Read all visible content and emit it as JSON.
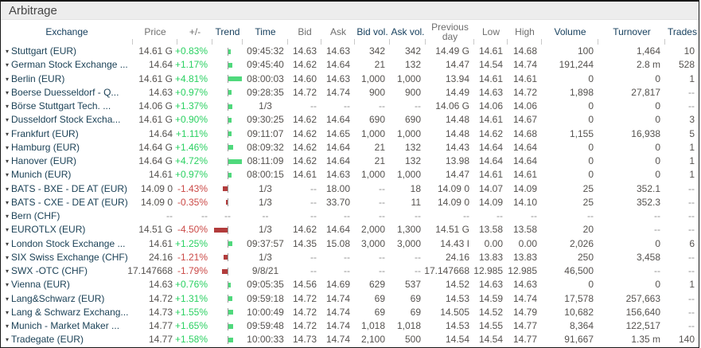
{
  "title": "Arbitrage",
  "colors": {
    "positive_text": "#2bd162",
    "negative_text": "#cb4a47",
    "positive_bar": "#4fd97c",
    "negative_bar": "#b23c3c",
    "header_navy": "#17405e",
    "header_gray": "#6e6e6e",
    "exchange_text": "#1c4257",
    "number_text": "#55524f",
    "titlebar_bg": "#ededed"
  },
  "columns": [
    {
      "label": "Exchange",
      "tone": "navy"
    },
    {
      "label": "Price",
      "tone": "gray"
    },
    {
      "label": "+/-",
      "tone": "gray"
    },
    {
      "label": "Trend",
      "tone": "navy"
    },
    {
      "label": "Time",
      "tone": "navy"
    },
    {
      "label": "Bid",
      "tone": "gray"
    },
    {
      "label": "Ask",
      "tone": "gray"
    },
    {
      "label": "Bid vol.",
      "tone": "navy"
    },
    {
      "label": "Ask vol.",
      "tone": "navy"
    },
    {
      "label": "Previous day",
      "tone": "gray"
    },
    {
      "label": "Low",
      "tone": "gray"
    },
    {
      "label": "High",
      "tone": "gray"
    },
    {
      "label": "Volume",
      "tone": "navy"
    },
    {
      "label": "Turnover",
      "tone": "navy"
    },
    {
      "label": "Trades",
      "tone": "navy"
    }
  ],
  "rows": [
    {
      "exchange": "Stuttgart (EUR)",
      "price": "14.61 G",
      "change": "+0.83%",
      "time": "09:45:32",
      "bid": "14.63",
      "ask": "14.63",
      "bid_vol": "342",
      "ask_vol": "342",
      "prev_day": "14.49 G",
      "low": "14.61",
      "high": "14.68",
      "volume": "100",
      "turnover": "1,464",
      "trades": "10"
    },
    {
      "exchange": "German Stock Exchange ...",
      "price": "14.64",
      "change": "+1.17%",
      "time": "09:45:40",
      "bid": "14.62",
      "ask": "14.64",
      "bid_vol": "21",
      "ask_vol": "132",
      "prev_day": "14.47",
      "low": "14.54",
      "high": "14.74",
      "volume": "191,244",
      "turnover": "2.8 m",
      "trades": "528"
    },
    {
      "exchange": "Berlin (EUR)",
      "price": "14.61 G",
      "change": "+4.81%",
      "time": "08:00:03",
      "bid": "14.60",
      "ask": "14.63",
      "bid_vol": "1,000",
      "ask_vol": "1,000",
      "prev_day": "13.94",
      "low": "14.61",
      "high": "14.61",
      "volume": "0",
      "turnover": "0",
      "trades": "1"
    },
    {
      "exchange": "Boerse Duesseldorf - Q...",
      "price": "14.63",
      "change": "+0.97%",
      "time": "09:28:35",
      "bid": "14.72",
      "ask": "14.74",
      "bid_vol": "900",
      "ask_vol": "900",
      "prev_day": "14.49",
      "low": "14.63",
      "high": "14.72",
      "volume": "1,898",
      "turnover": "27,817",
      "trades": "--"
    },
    {
      "exchange": "Börse Stuttgart Tech. ...",
      "price": "14.06 G",
      "change": "+1.37%",
      "time": "1/3",
      "bid": "--",
      "ask": "--",
      "bid_vol": "--",
      "ask_vol": "--",
      "prev_day": "14.06 G",
      "low": "14.06",
      "high": "14.06",
      "volume": "0",
      "turnover": "0",
      "trades": "--"
    },
    {
      "exchange": "Dusseldorf Stock Excha...",
      "price": "14.61 G",
      "change": "+0.90%",
      "time": "09:30:25",
      "bid": "14.62",
      "ask": "14.64",
      "bid_vol": "690",
      "ask_vol": "690",
      "prev_day": "14.48",
      "low": "14.61",
      "high": "14.67",
      "volume": "0",
      "turnover": "0",
      "trades": "3"
    },
    {
      "exchange": "Frankfurt (EUR)",
      "price": "14.64",
      "change": "+1.11%",
      "time": "09:11:07",
      "bid": "14.62",
      "ask": "14.65",
      "bid_vol": "1,000",
      "ask_vol": "1,000",
      "prev_day": "14.48",
      "low": "14.62",
      "high": "14.68",
      "volume": "1,155",
      "turnover": "16,938",
      "trades": "5"
    },
    {
      "exchange": "Hamburg (EUR)",
      "price": "14.64 G",
      "change": "+1.46%",
      "time": "08:09:32",
      "bid": "14.62",
      "ask": "14.64",
      "bid_vol": "21",
      "ask_vol": "132",
      "prev_day": "14.43",
      "low": "14.64",
      "high": "14.64",
      "volume": "0",
      "turnover": "0",
      "trades": "1"
    },
    {
      "exchange": "Hanover (EUR)",
      "price": "14.64 G",
      "change": "+4.72%",
      "time": "08:11:09",
      "bid": "14.62",
      "ask": "14.64",
      "bid_vol": "21",
      "ask_vol": "132",
      "prev_day": "13.98",
      "low": "14.64",
      "high": "14.64",
      "volume": "0",
      "turnover": "0",
      "trades": "1"
    },
    {
      "exchange": "Munich (EUR)",
      "price": "14.61",
      "change": "+0.97%",
      "time": "08:00:15",
      "bid": "14.61",
      "ask": "14.63",
      "bid_vol": "1,000",
      "ask_vol": "1,000",
      "prev_day": "14.47",
      "low": "14.61",
      "high": "14.61",
      "volume": "0",
      "turnover": "0",
      "trades": "1"
    },
    {
      "exchange": "BATS - BXE - DE AT (EUR)",
      "price": "14.09 0",
      "change": "-1.43%",
      "time": "1/3",
      "bid": "--",
      "ask": "18.00",
      "bid_vol": "--",
      "ask_vol": "18",
      "prev_day": "14.09 0",
      "low": "14.07",
      "high": "14.09",
      "volume": "25",
      "turnover": "352.1",
      "trades": "--"
    },
    {
      "exchange": "BATS - CXE - DE AT (EUR)",
      "price": "14.09 0",
      "change": "-0.35%",
      "time": "1/3",
      "bid": "--",
      "ask": "33.70",
      "bid_vol": "--",
      "ask_vol": "11",
      "prev_day": "14.09 0",
      "low": "14.09",
      "high": "14.10",
      "volume": "25",
      "turnover": "352.3",
      "trades": "--"
    },
    {
      "exchange": "Bern (CHF)",
      "price": "--",
      "change": "--",
      "time": "--",
      "bid": "--",
      "ask": "--",
      "bid_vol": "--",
      "ask_vol": "--",
      "prev_day": "--",
      "low": "--",
      "high": "--",
      "volume": "--",
      "turnover": "--",
      "trades": "--"
    },
    {
      "exchange": "EUROTLX (EUR)",
      "price": "14.51 G",
      "change": "-4.50%",
      "time": "1/3",
      "bid": "14.62",
      "ask": "14.64",
      "bid_vol": "2,000",
      "ask_vol": "1,300",
      "prev_day": "14.51 G",
      "low": "13.58",
      "high": "13.58",
      "volume": "20",
      "turnover": "--",
      "trades": "--"
    },
    {
      "exchange": "London Stock Exchange ...",
      "price": "14.61",
      "change": "+1.25%",
      "time": "09:37:57",
      "bid": "14.35",
      "ask": "15.08",
      "bid_vol": "3,000",
      "ask_vol": "3,000",
      "prev_day": "14.43 I",
      "low": "0.00",
      "high": "0.00",
      "volume": "2,026",
      "turnover": "0",
      "trades": "6"
    },
    {
      "exchange": "SIX Swiss Exchange (CHF)",
      "price": "24.16",
      "change": "-1.21%",
      "time": "1/3",
      "bid": "--",
      "ask": "--",
      "bid_vol": "--",
      "ask_vol": "--",
      "prev_day": "24.16",
      "low": "13.83",
      "high": "13.83",
      "volume": "250",
      "turnover": "3,458",
      "trades": "--"
    },
    {
      "exchange": "SWX -OTC (CHF)",
      "price": "17.147668",
      "change": "-1.79%",
      "time": "9/8/21",
      "bid": "--",
      "ask": "--",
      "bid_vol": "--",
      "ask_vol": "--",
      "prev_day": "17.147668",
      "low": "12.985",
      "high": "12.985",
      "volume": "46,500",
      "turnover": "--",
      "trades": "--"
    },
    {
      "exchange": "Vienna (EUR)",
      "price": "14.63",
      "change": "+0.76%",
      "time": "09:05:35",
      "bid": "14.56",
      "ask": "14.69",
      "bid_vol": "629",
      "ask_vol": "537",
      "prev_day": "14.52",
      "low": "14.63",
      "high": "14.63",
      "volume": "0",
      "turnover": "0",
      "trades": "1"
    },
    {
      "exchange": "Lang&Schwarz (EUR)",
      "price": "14.72",
      "change": "+1.31%",
      "time": "09:59:18",
      "bid": "14.72",
      "ask": "14.74",
      "bid_vol": "69",
      "ask_vol": "69",
      "prev_day": "14.53",
      "low": "14.59",
      "high": "14.74",
      "volume": "17,578",
      "turnover": "257,663",
      "trades": "--"
    },
    {
      "exchange": "Lang & Schwarz Exchang...",
      "price": "14.73",
      "change": "+1.55%",
      "time": "10:00:49",
      "bid": "14.72",
      "ask": "14.74",
      "bid_vol": "69",
      "ask_vol": "69",
      "prev_day": "14.505",
      "low": "14.52",
      "high": "14.79",
      "volume": "10,682",
      "turnover": "156,640",
      "trades": "--"
    },
    {
      "exchange": "Munich - Market Maker ...",
      "price": "14.77",
      "change": "+1.65%",
      "time": "09:59:48",
      "bid": "14.72",
      "ask": "14.74",
      "bid_vol": "1,018",
      "ask_vol": "1,018",
      "prev_day": "14.53",
      "low": "14.55",
      "high": "14.77",
      "volume": "8,364",
      "turnover": "122,517",
      "trades": "--"
    },
    {
      "exchange": "Tradegate (EUR)",
      "price": "14.77",
      "change": "+1.58%",
      "time": "10:00:33",
      "bid": "14.73",
      "ask": "14.74",
      "bid_vol": "2,100",
      "ask_vol": "500",
      "prev_day": "14.54",
      "low": "14.54",
      "high": "14.77",
      "volume": "91,667",
      "turnover": "1.35 m",
      "trades": "140"
    }
  ]
}
